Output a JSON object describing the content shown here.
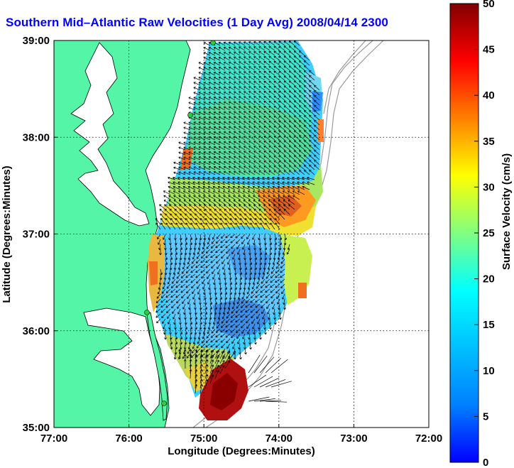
{
  "title": "Southern Mid-Atlantic Raw Velocities (1 Day Avg) 2008/04/14 2300 GMT",
  "title_visible": "Southern Mid–Atlantic Raw Velocities (1 Day Avg) 2008/04/14 2300",
  "chart_data": {
    "type": "heatmap",
    "title": "Southern Mid-Atlantic Raw Velocities (1 Day Avg) 2008/04/14 2300 GMT",
    "xlabel": "Longitude (Degrees:Minutes)",
    "ylabel": "Latitude (Degrees:Minutes)",
    "x_tick_labels": [
      "77:00",
      "76:00",
      "75:00",
      "74:00",
      "73:00",
      "72:00"
    ],
    "y_tick_labels": [
      "39:00",
      "38:00",
      "37:00",
      "36:00",
      "35:00"
    ],
    "xlim": [
      -77,
      -72
    ],
    "ylim": [
      35,
      39
    ],
    "grid": true,
    "colorbar": {
      "label": "Surface Velocity (cm/s)",
      "range": [
        0,
        50
      ],
      "tick_labels": [
        "50",
        "45",
        "40",
        "35",
        "30",
        "25",
        "20",
        "15",
        "10",
        "5",
        "0"
      ],
      "colormap": "jet"
    }
  },
  "colors": {
    "land": "#55f5a8",
    "title": "#0000ff",
    "coast": "#000000",
    "bathymetry": "#9a9a9a",
    "station": "#2ecc40"
  }
}
